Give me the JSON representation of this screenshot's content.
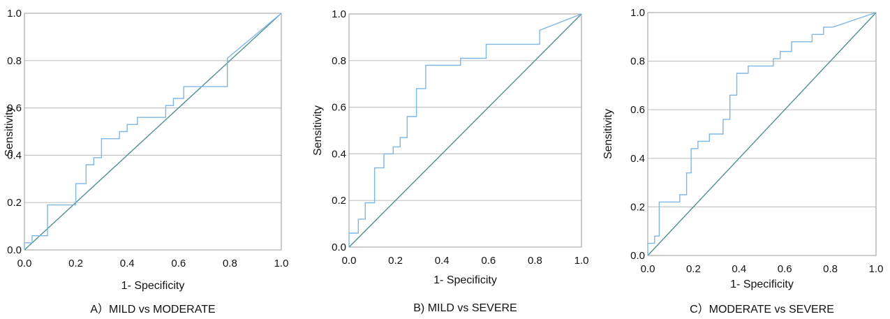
{
  "chart_data": [
    {
      "type": "line",
      "caption": "A）MILD vs MODERATE",
      "xlabel": "1- Specificity",
      "ylabel": "Sensitivity",
      "xlim": [
        0,
        1
      ],
      "ylim": [
        0,
        1
      ],
      "xticks": [
        "0.0",
        "0.2",
        "0.4",
        "0.6",
        "0.8",
        "1.0"
      ],
      "yticks": [
        "0.0",
        "0.2",
        "0.4",
        "0.6",
        "0.8",
        "1.0"
      ],
      "grid": "horizontal",
      "series": [
        {
          "color": "#7eb6e6",
          "x": [
            0,
            0,
            0.03,
            0.03,
            0.09,
            0.09,
            0.2,
            0.2,
            0.24,
            0.24,
            0.27,
            0.27,
            0.3,
            0.3,
            0.37,
            0.37,
            0.4,
            0.4,
            0.44,
            0.44,
            0.55,
            0.55,
            0.58,
            0.58,
            0.62,
            0.62,
            0.79,
            0.79,
            1
          ],
          "y": [
            0,
            0.03,
            0.03,
            0.06,
            0.06,
            0.19,
            0.19,
            0.28,
            0.28,
            0.36,
            0.36,
            0.39,
            0.39,
            0.47,
            0.47,
            0.5,
            0.5,
            0.53,
            0.53,
            0.56,
            0.56,
            0.61,
            0.61,
            0.64,
            0.64,
            0.69,
            0.69,
            0.81,
            1
          ]
        },
        {
          "color": "#4f8f8f",
          "x": [
            0,
            1
          ],
          "y": [
            0,
            1
          ]
        }
      ]
    },
    {
      "type": "line",
      "caption": "B) MILD vs SEVERE",
      "xlabel": "1- Specificity",
      "ylabel": "Sensitivity",
      "xlim": [
        0,
        1
      ],
      "ylim": [
        0,
        1
      ],
      "xticks": [
        "0.0",
        "0.2",
        "0.4",
        "0.6",
        "0.8",
        "1.0"
      ],
      "yticks": [
        "0.0",
        "0.2",
        "0.4",
        "0.6",
        "0.8",
        "1.0"
      ],
      "grid": "horizontal",
      "series": [
        {
          "color": "#7eb6e6",
          "x": [
            0,
            0,
            0.04,
            0.04,
            0.07,
            0.07,
            0.11,
            0.11,
            0.15,
            0.15,
            0.19,
            0.19,
            0.22,
            0.22,
            0.25,
            0.25,
            0.29,
            0.29,
            0.33,
            0.33,
            0.48,
            0.48,
            0.59,
            0.59,
            0.82,
            0.82,
            1
          ],
          "y": [
            0,
            0.06,
            0.06,
            0.12,
            0.12,
            0.19,
            0.19,
            0.34,
            0.34,
            0.4,
            0.4,
            0.43,
            0.43,
            0.47,
            0.47,
            0.56,
            0.56,
            0.68,
            0.68,
            0.78,
            0.78,
            0.81,
            0.81,
            0.87,
            0.87,
            0.93,
            1
          ]
        },
        {
          "color": "#4f8f8f",
          "x": [
            0,
            1
          ],
          "y": [
            0,
            1
          ]
        }
      ]
    },
    {
      "type": "line",
      "caption": "C）MODERATE vs SEVERE",
      "xlabel": "1- Specificity",
      "ylabel": "Sensitivity",
      "xlim": [
        0,
        1
      ],
      "ylim": [
        0,
        1
      ],
      "xticks": [
        "0.0",
        "0.2",
        "0.4",
        "0.6",
        "0.8",
        "1.0"
      ],
      "yticks": [
        "0.0",
        "0.2",
        "0.4",
        "0.6",
        "0.8",
        "1.0"
      ],
      "grid": "horizontal",
      "series": [
        {
          "color": "#7eb6e6",
          "x": [
            0,
            0,
            0.03,
            0.03,
            0.05,
            0.05,
            0.14,
            0.14,
            0.17,
            0.17,
            0.19,
            0.19,
            0.22,
            0.22,
            0.27,
            0.27,
            0.33,
            0.33,
            0.36,
            0.36,
            0.39,
            0.39,
            0.44,
            0.44,
            0.55,
            0.55,
            0.58,
            0.58,
            0.63,
            0.63,
            0.72,
            0.72,
            0.77,
            0.77,
            0.81,
            1
          ],
          "y": [
            0,
            0.05,
            0.05,
            0.08,
            0.08,
            0.22,
            0.22,
            0.25,
            0.25,
            0.34,
            0.34,
            0.44,
            0.44,
            0.47,
            0.47,
            0.5,
            0.5,
            0.56,
            0.56,
            0.66,
            0.66,
            0.75,
            0.75,
            0.78,
            0.78,
            0.81,
            0.81,
            0.84,
            0.84,
            0.88,
            0.88,
            0.91,
            0.91,
            0.94,
            0.94,
            1
          ]
        },
        {
          "color": "#4f8f8f",
          "x": [
            0,
            1
          ],
          "y": [
            0,
            1
          ]
        }
      ]
    }
  ]
}
